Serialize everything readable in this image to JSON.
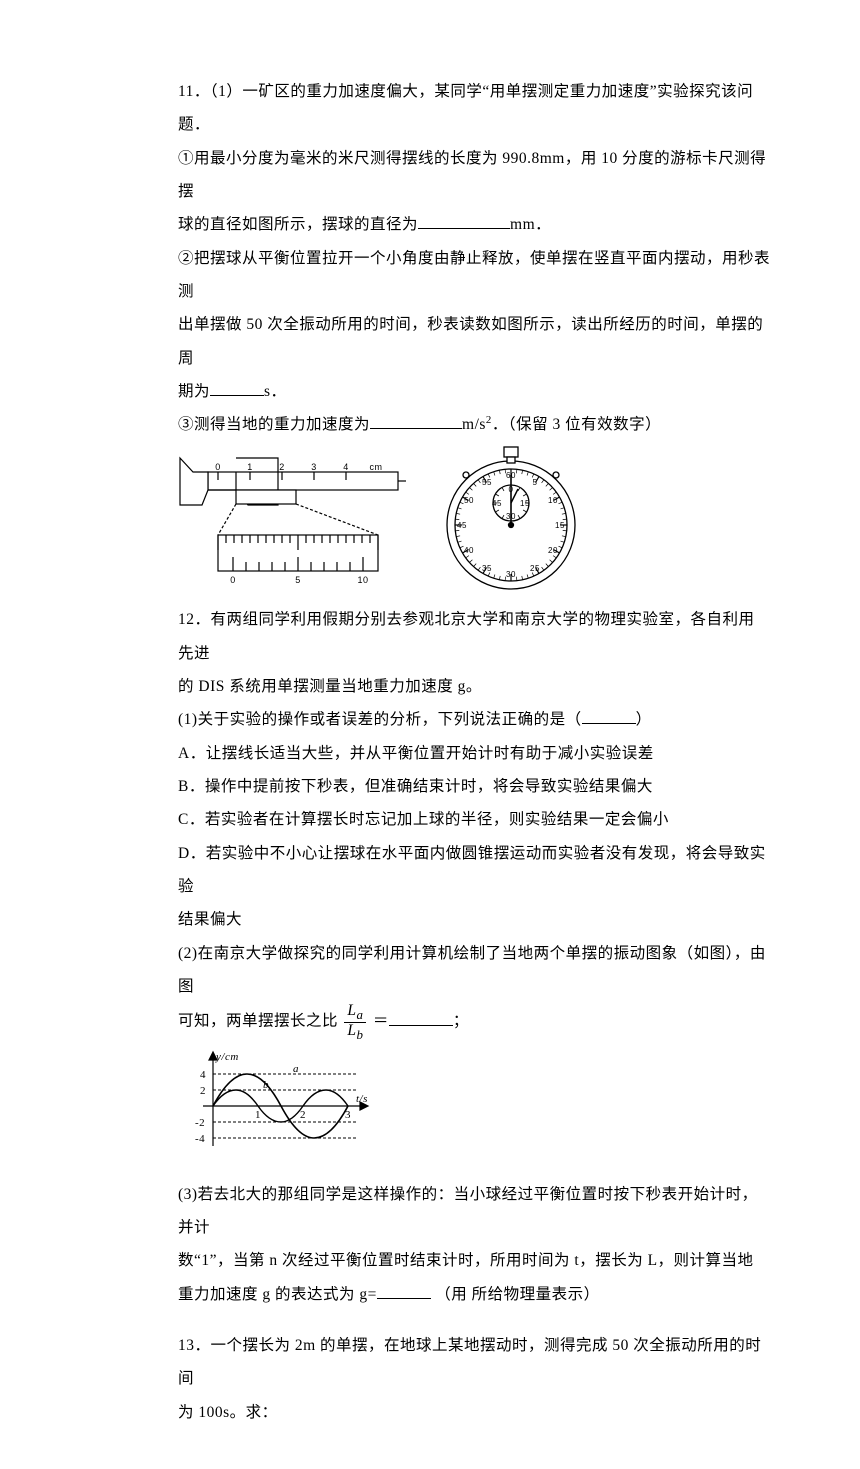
{
  "q11": {
    "head": "11．（1）一矿区的重力加速度偏大，某同学“用单摆测定重力加速度”实验探究该问题．",
    "p1a": "①用最小分度为毫米的米尺测得摆线的长度为 990.8mm，用 10 分度的游标卡尺测得摆",
    "p1b_before": "球的直径如图所示，摆球的直径为",
    "p1b_after": "mm．",
    "p2a": "②把摆球从平衡位置拉开一个小角度由静止释放，使单摆在竖直平面内摆动，用秒表测",
    "p2b": "出单摆做 50 次全振动所用的时间，秒表读数如图所示，读出所经历的时间，单摆的周",
    "p2c_before": "期为",
    "p2c_after": "s．",
    "p3_before": "③测得当地的重力加速度为",
    "p3_mid": "m/s",
    "p3_after": "．（保留 3 位有效数字）",
    "caliper": {
      "main_scale_labels": [
        "0",
        "1",
        "2",
        "3",
        "4",
        "cm"
      ],
      "vernier_labels": [
        "0",
        "5",
        "10"
      ]
    },
    "stopwatch": {
      "inner_labels": [
        "0",
        "15",
        "30",
        "45"
      ],
      "outer_labels": [
        "60",
        "5",
        "10",
        "15",
        "20",
        "25",
        "30",
        "35",
        "40",
        "45",
        "50",
        "55"
      ]
    }
  },
  "q12": {
    "head_a": "12．有两组同学利用假期分别去参观北京大学和南京大学的物理实验室，各自利用先进",
    "head_b": "的 DIS 系统用单摆测量当地重力加速度 g。",
    "p1_before": "(1)关于实验的操作或者误差的分析，下列说法正确的是（",
    "p1_after": "）",
    "optA": "A．让摆线长适当大些，并从平衡位置开始计时有助于减小实验误差",
    "optB": "B．操作中提前按下秒表，但准确结束计时，将会导致实验结果偏大",
    "optC": "C．若实验者在计算摆长时忘记加上球的半径，则实验结果一定会偏小",
    "optD_a": "D．若实验中不小心让摆球在水平面内做圆锥摆运动而实验者没有发现，将会导致实验",
    "optD_b": "结果偏大",
    "p2_a": "(2)在南京大学做探究的同学利用计算机绘制了当地两个单摆的振动图象（如图），由图",
    "p2_b_before": "可知，两单摆摆长之比",
    "p2_b_eq": "＝",
    "p2_b_after": "；",
    "frac_num": "L",
    "frac_sub_num": "a",
    "frac_den": "L",
    "frac_sub_den": "b",
    "graph": {
      "y_axis_label": "y/cm",
      "x_axis_label": "t/s",
      "y_ticks_pos": [
        "4",
        "2"
      ],
      "y_ticks_neg": [
        "-2",
        "-4"
      ],
      "x_ticks": [
        "1",
        "2",
        "3"
      ],
      "curve_a_label": "a",
      "curve_b_label": "b",
      "amplitude_a": 4,
      "amplitude_b": 2,
      "period_a": 3,
      "period_b": 2,
      "colors": {
        "bg": "#ffffff",
        "line": "#000000",
        "dash": "#000000"
      }
    },
    "p3_a": "(3)若去北大的那组同学是这样操作的：当小球经过平衡位置时按下秒表开始计时，并计",
    "p3_b": "数“1”，当第 n 次经过平衡位置时结束计时，所用时间为 t，摆长为 L，则计算当地",
    "p3_c_before": "重力加速度 g 的表达式为 g=",
    "p3_c_after": "（用 所给物理量表示）"
  },
  "q13": {
    "head_a": "13．一个摆长为 2m 的单摆，在地球上某地摆动时，测得完成 50 次全振动所用的时间",
    "head_b": "为 100s。求："
  },
  "blanks": {
    "w_long": 92,
    "w_med": 64,
    "w_short": 54
  }
}
